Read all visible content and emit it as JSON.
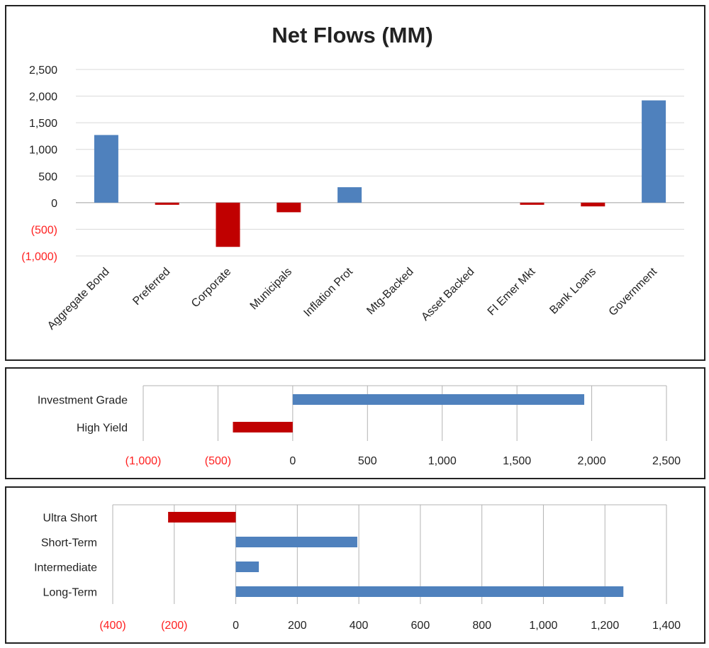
{
  "colors": {
    "positive": "#4f81bd",
    "negative": "#c00000",
    "negative_label": "#ff2020",
    "grid": "#d9d9d9",
    "grid_bar": "#b3b3b3"
  },
  "chart_data": [
    {
      "type": "bar",
      "title": "Net Flows (MM)",
      "categories": [
        "Aggregate Bond",
        "Preferred",
        "Corporate",
        "Municipals",
        "Inflation Prot",
        "Mtg-Backed",
        "Asset Backed",
        "FI Emer Mkt",
        "Bank Loans",
        "Government"
      ],
      "values": [
        1270,
        -40,
        -830,
        -180,
        290,
        0,
        0,
        -40,
        -70,
        1920
      ],
      "ylim": [
        -1000,
        2500
      ],
      "yticks": [
        2500,
        2000,
        1500,
        1000,
        500,
        0,
        -500,
        -1000
      ],
      "ytick_labels": [
        "2,500",
        "2,000",
        "1,500",
        "1,000",
        "500",
        "0",
        "(500)",
        "(1,000)"
      ],
      "grid": true
    },
    {
      "type": "bar",
      "orientation": "horizontal",
      "categories": [
        "Investment Grade",
        "High Yield"
      ],
      "values": [
        1950,
        -400
      ],
      "xlim": [
        -1000,
        2500
      ],
      "xticks": [
        -1000,
        -500,
        0,
        500,
        1000,
        1500,
        2000,
        2500
      ],
      "xtick_labels": [
        "(1,000)",
        "(500)",
        "0",
        "500",
        "1,000",
        "1,500",
        "2,000",
        "2,500"
      ],
      "grid": true
    },
    {
      "type": "bar",
      "orientation": "horizontal",
      "categories": [
        "Ultra Short",
        "Short-Term",
        "Intermediate",
        "Long-Term"
      ],
      "values": [
        -220,
        395,
        75,
        1260
      ],
      "xlim": [
        -400,
        1400
      ],
      "xticks": [
        -400,
        -200,
        0,
        200,
        400,
        600,
        800,
        1000,
        1200,
        1400
      ],
      "xtick_labels": [
        "(400)",
        "(200)",
        "0",
        "200",
        "400",
        "600",
        "800",
        "1,000",
        "1,200",
        "1,400"
      ],
      "grid": true
    }
  ]
}
